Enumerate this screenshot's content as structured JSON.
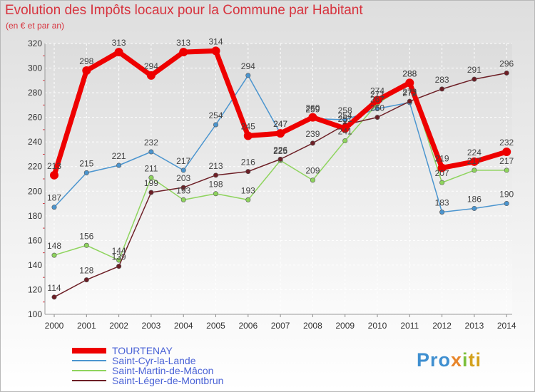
{
  "chart_data": {
    "type": "line",
    "title": "Evolution des Impôts locaux pour la Commune par Habitant",
    "subtitle": "(en € et par an)",
    "xlabel": "",
    "ylabel": "",
    "grid": true,
    "ylim": [
      100,
      320
    ],
    "yticks": [
      100,
      120,
      140,
      160,
      180,
      200,
      220,
      240,
      260,
      280,
      300,
      320
    ],
    "categories": [
      "2000",
      "2001",
      "2002",
      "2003",
      "2004",
      "2005",
      "2006",
      "2007",
      "2008",
      "2009",
      "2010",
      "2011",
      "2012",
      "2013",
      "2014"
    ],
    "legend_position": "bottom-left",
    "series": [
      {
        "name": "TOURTENAY",
        "color": "#ee0000",
        "values": [
          213,
          298,
          313,
          294,
          313,
          314,
          245,
          247,
          260,
          251,
          274,
          288,
          219,
          224,
          232
        ]
      },
      {
        "name": "Saint-Cyr-la-Lande",
        "color": "#4b95cf",
        "values": [
          187,
          215,
          221,
          232,
          217,
          254,
          294,
          247,
          259,
          258,
          267,
          272,
          183,
          186,
          190
        ]
      },
      {
        "name": "Saint-Martin-de-Mâcon",
        "color": "#8ed45d",
        "values": [
          148,
          156,
          144,
          211,
          193,
          198,
          193,
          225,
          209,
          241,
          271,
          288,
          207,
          217,
          217
        ]
      },
      {
        "name": "Saint-Léger-de-Montbrun",
        "color": "#6d1f26",
        "values": [
          114,
          128,
          139,
          199,
          203,
          213,
          216,
          226,
          239,
          254,
          260,
          273,
          283,
          291,
          296
        ]
      }
    ]
  },
  "logo": {
    "p1": "Pro",
    "p2": "x",
    "p3": "i",
    "p4": "ti"
  }
}
